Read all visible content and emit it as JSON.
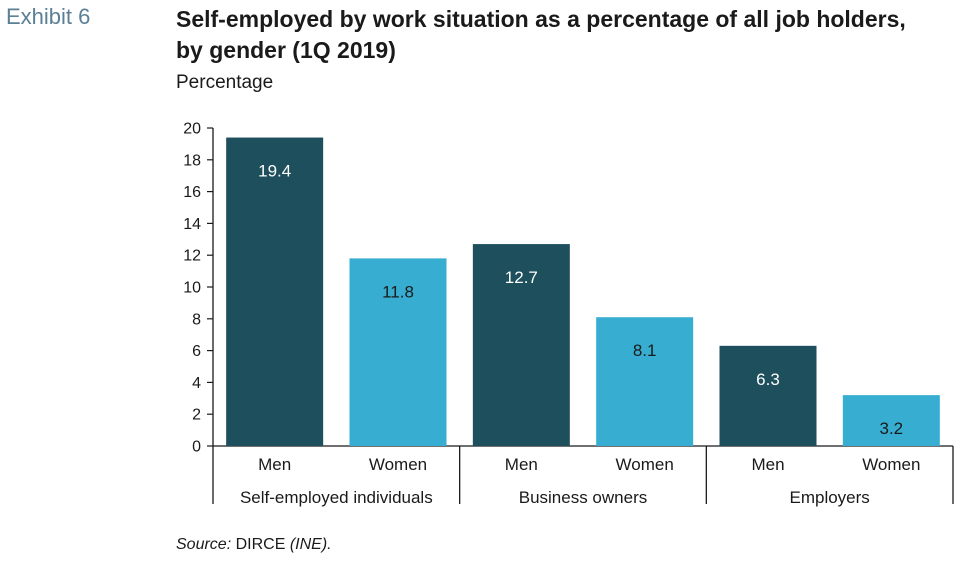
{
  "exhibit": "Exhibit 6",
  "title": "Self-employed by work situation as a percentage of all job holders, by gender (1Q 2019)",
  "source": {
    "label": "Source:",
    "text": "DIRCE",
    "suffix": "(INE)."
  },
  "colors": {
    "men": "#1e4f5c",
    "women": "#37aed1",
    "axis": "#1a1a1a"
  },
  "chart_data": {
    "type": "bar",
    "ylabel": "Percentage",
    "xlabel": "",
    "ylim": [
      0,
      20
    ],
    "yticks": [
      0,
      2,
      4,
      6,
      8,
      10,
      12,
      14,
      16,
      18,
      20
    ],
    "groups": [
      {
        "name": "Self-employed individuals",
        "bars": [
          {
            "label": "Men",
            "value": 19.4,
            "value_label": "19.4"
          },
          {
            "label": "Women",
            "value": 11.8,
            "value_label": "11.8"
          }
        ]
      },
      {
        "name": "Business owners",
        "bars": [
          {
            "label": "Men",
            "value": 12.7,
            "value_label": "12.7"
          },
          {
            "label": "Women",
            "value": 8.1,
            "value_label": "8.1"
          }
        ]
      },
      {
        "name": "Employers",
        "bars": [
          {
            "label": "Men",
            "value": 6.3,
            "value_label": "6.3"
          },
          {
            "label": "Women",
            "value": 3.2,
            "value_label": "3.2"
          }
        ]
      }
    ]
  }
}
